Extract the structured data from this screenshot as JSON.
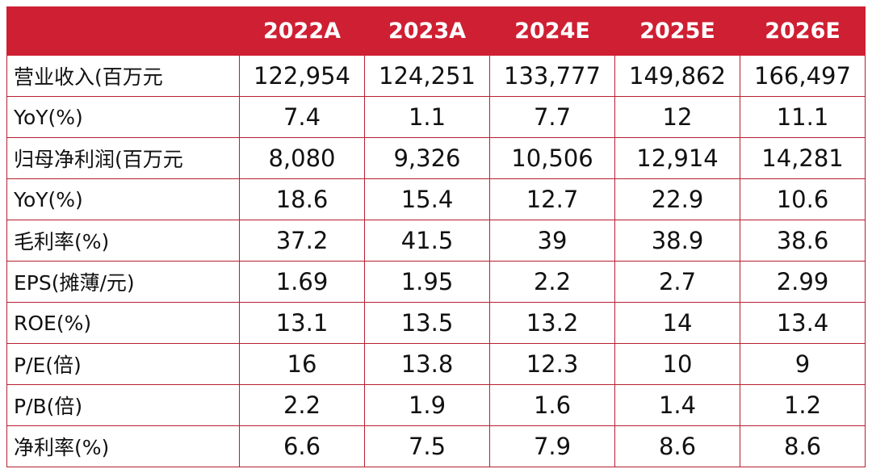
{
  "table": {
    "header": [
      "",
      "2022A",
      "2023A",
      "2024E",
      "2025E",
      "2026E"
    ],
    "rows": [
      {
        "label": "营业收入(百万元",
        "values": [
          "122,954",
          "124,251",
          "133,777",
          "149,862",
          "166,497"
        ]
      },
      {
        "label": "YoY(%)",
        "values": [
          "7.4",
          "1.1",
          "7.7",
          "12",
          "11.1"
        ]
      },
      {
        "label": "归母净利润(百万元",
        "values": [
          "8,080",
          "9,326",
          "10,506",
          "12,914",
          "14,281"
        ]
      },
      {
        "label": "YoY(%)",
        "values": [
          "18.6",
          "15.4",
          "12.7",
          "22.9",
          "10.6"
        ]
      },
      {
        "label": "毛利率(%)",
        "values": [
          "37.2",
          "41.5",
          "39",
          "38.9",
          "38.6"
        ]
      },
      {
        "label": "EPS(摊薄/元)",
        "values": [
          "1.69",
          "1.95",
          "2.2",
          "2.7",
          "2.99"
        ]
      },
      {
        "label": "ROE(%)",
        "values": [
          "13.1",
          "13.5",
          "13.2",
          "14",
          "13.4"
        ]
      },
      {
        "label": "P/E(倍)",
        "values": [
          "16",
          "13.8",
          "12.3",
          "10",
          "9"
        ]
      },
      {
        "label": "P/B(倍)",
        "values": [
          "2.2",
          "1.9",
          "1.6",
          "1.4",
          "1.2"
        ]
      },
      {
        "label": "净利率(%)",
        "values": [
          "6.6",
          "7.5",
          "7.9",
          "8.6",
          "8.6"
        ]
      }
    ]
  },
  "colors": {
    "header_bg": "#cf1f33",
    "header_text": "#ffffff",
    "border": "#b52030",
    "body_text": "#111111"
  }
}
